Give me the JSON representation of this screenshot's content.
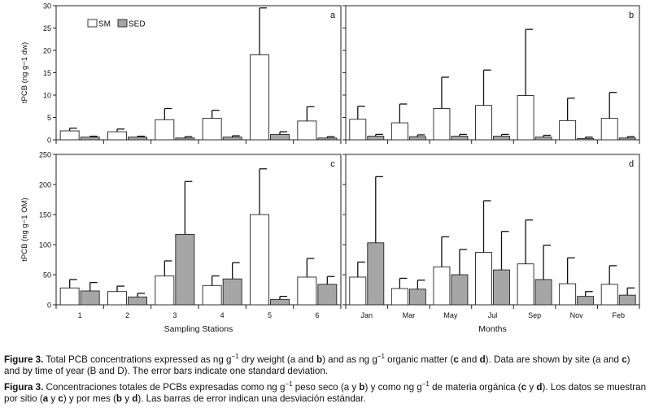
{
  "chart_data": [
    {
      "id": "a",
      "type": "bar",
      "panel_label": "a",
      "ylabel": "tPCB (ng g−1 dw)",
      "ylim": [
        0,
        30
      ],
      "yticks": [
        0,
        5,
        10,
        15,
        20,
        25,
        30
      ],
      "categories": [
        "1",
        "2",
        "3",
        "4",
        "5",
        "6"
      ],
      "show_xticklabels": false,
      "legend": [
        "SM",
        "SED"
      ],
      "legend_position": "top-left",
      "series": [
        {
          "name": "SM",
          "values": [
            2.0,
            1.8,
            4.5,
            4.8,
            19.0,
            4.2
          ],
          "errors": [
            0.6,
            0.6,
            2.5,
            1.8,
            10.5,
            3.2
          ]
        },
        {
          "name": "SED",
          "values": [
            0.6,
            0.6,
            0.4,
            0.6,
            1.2,
            0.4
          ],
          "errors": [
            0.2,
            0.2,
            0.3,
            0.3,
            0.6,
            0.3
          ]
        }
      ]
    },
    {
      "id": "b",
      "type": "bar",
      "panel_label": "b",
      "ylabel": "",
      "ylim": [
        0,
        30
      ],
      "yticks": [
        0,
        5,
        10,
        15,
        20,
        25,
        30
      ],
      "categories": [
        "Jan",
        "Mar",
        "May",
        "Jul",
        "Sep",
        "Nov",
        "Feb"
      ],
      "show_xticklabels": false,
      "series": [
        {
          "name": "SM",
          "values": [
            4.6,
            3.8,
            7.0,
            7.7,
            9.9,
            4.3,
            4.8
          ],
          "errors": [
            2.9,
            4.2,
            7.0,
            7.9,
            14.8,
            5.0,
            5.8
          ]
        },
        {
          "name": "SED",
          "values": [
            0.8,
            0.7,
            0.8,
            0.8,
            0.6,
            0.3,
            0.4
          ],
          "errors": [
            0.4,
            0.4,
            0.4,
            0.4,
            0.4,
            0.3,
            0.3
          ]
        }
      ]
    },
    {
      "id": "c",
      "type": "bar",
      "panel_label": "c",
      "ylabel": "tPCB (ng g−1 OM)",
      "ylim": [
        0,
        250
      ],
      "yticks": [
        0,
        50,
        100,
        150,
        200,
        250
      ],
      "categories": [
        "1",
        "2",
        "3",
        "4",
        "5",
        "6"
      ],
      "show_xticklabels": true,
      "xlabel": "Sampling Stations",
      "series": [
        {
          "name": "SM",
          "values": [
            28,
            22,
            48,
            32,
            150,
            46
          ],
          "errors": [
            14,
            9,
            25,
            16,
            76,
            31
          ]
        },
        {
          "name": "SED",
          "values": [
            23,
            13,
            117,
            43,
            9,
            34
          ],
          "errors": [
            14,
            6,
            88,
            27,
            5,
            13
          ]
        }
      ]
    },
    {
      "id": "d",
      "type": "bar",
      "panel_label": "d",
      "ylabel": "",
      "ylim": [
        0,
        250
      ],
      "yticks": [
        0,
        50,
        100,
        150,
        200,
        250
      ],
      "categories": [
        "Jan",
        "Mar",
        "May",
        "Jul",
        "Sep",
        "Nov",
        "Feb"
      ],
      "show_xticklabels": true,
      "xlabel": "Months",
      "series": [
        {
          "name": "SM",
          "values": [
            46,
            27,
            63,
            87,
            68,
            35,
            34
          ],
          "errors": [
            25,
            17,
            50,
            86,
            73,
            43,
            31
          ]
        },
        {
          "name": "SED",
          "values": [
            103,
            26,
            50,
            58,
            42,
            14,
            16
          ],
          "errors": [
            110,
            15,
            42,
            64,
            57,
            8,
            12
          ]
        }
      ]
    }
  ],
  "caption": {
    "en": [
      {
        "t": "Figure 3.",
        "b": true
      },
      {
        "t": " Total PCB concentrations expressed as ng g−1 dry weight (a and "
      },
      {
        "t": "b",
        "b": true
      },
      {
        "t": ") and as ng g−1 organic matter ("
      },
      {
        "t": "c",
        "b": true
      },
      {
        "t": " and "
      },
      {
        "t": "d",
        "b": true
      },
      {
        "t": "). Data are shown by site (a and "
      },
      {
        "t": "c",
        "b": true
      },
      {
        "t": ") and by time of year (B and D). The error bars indicate one standard deviation."
      }
    ],
    "es": [
      {
        "t": "Figura 3.",
        "b": true
      },
      {
        "t": " Concentraciones totales de PCBs expresadas como ng g−1 peso seco (a y "
      },
      {
        "t": "b",
        "b": true
      },
      {
        "t": ") y como ng g−1 de materia orgánica ("
      },
      {
        "t": "c",
        "b": true
      },
      {
        "t": " y "
      },
      {
        "t": "d",
        "b": true
      },
      {
        "t": "). Los datos se muestran por sitio ("
      },
      {
        "t": "a",
        "b": true
      },
      {
        "t": " y "
      },
      {
        "t": "c",
        "b": true
      },
      {
        "t": ") y por mes ("
      },
      {
        "t": "b",
        "b": true
      },
      {
        "t": " y "
      },
      {
        "t": "d",
        "b": true
      },
      {
        "t": "). Las barras de error indican una desviación estándar."
      }
    ]
  }
}
